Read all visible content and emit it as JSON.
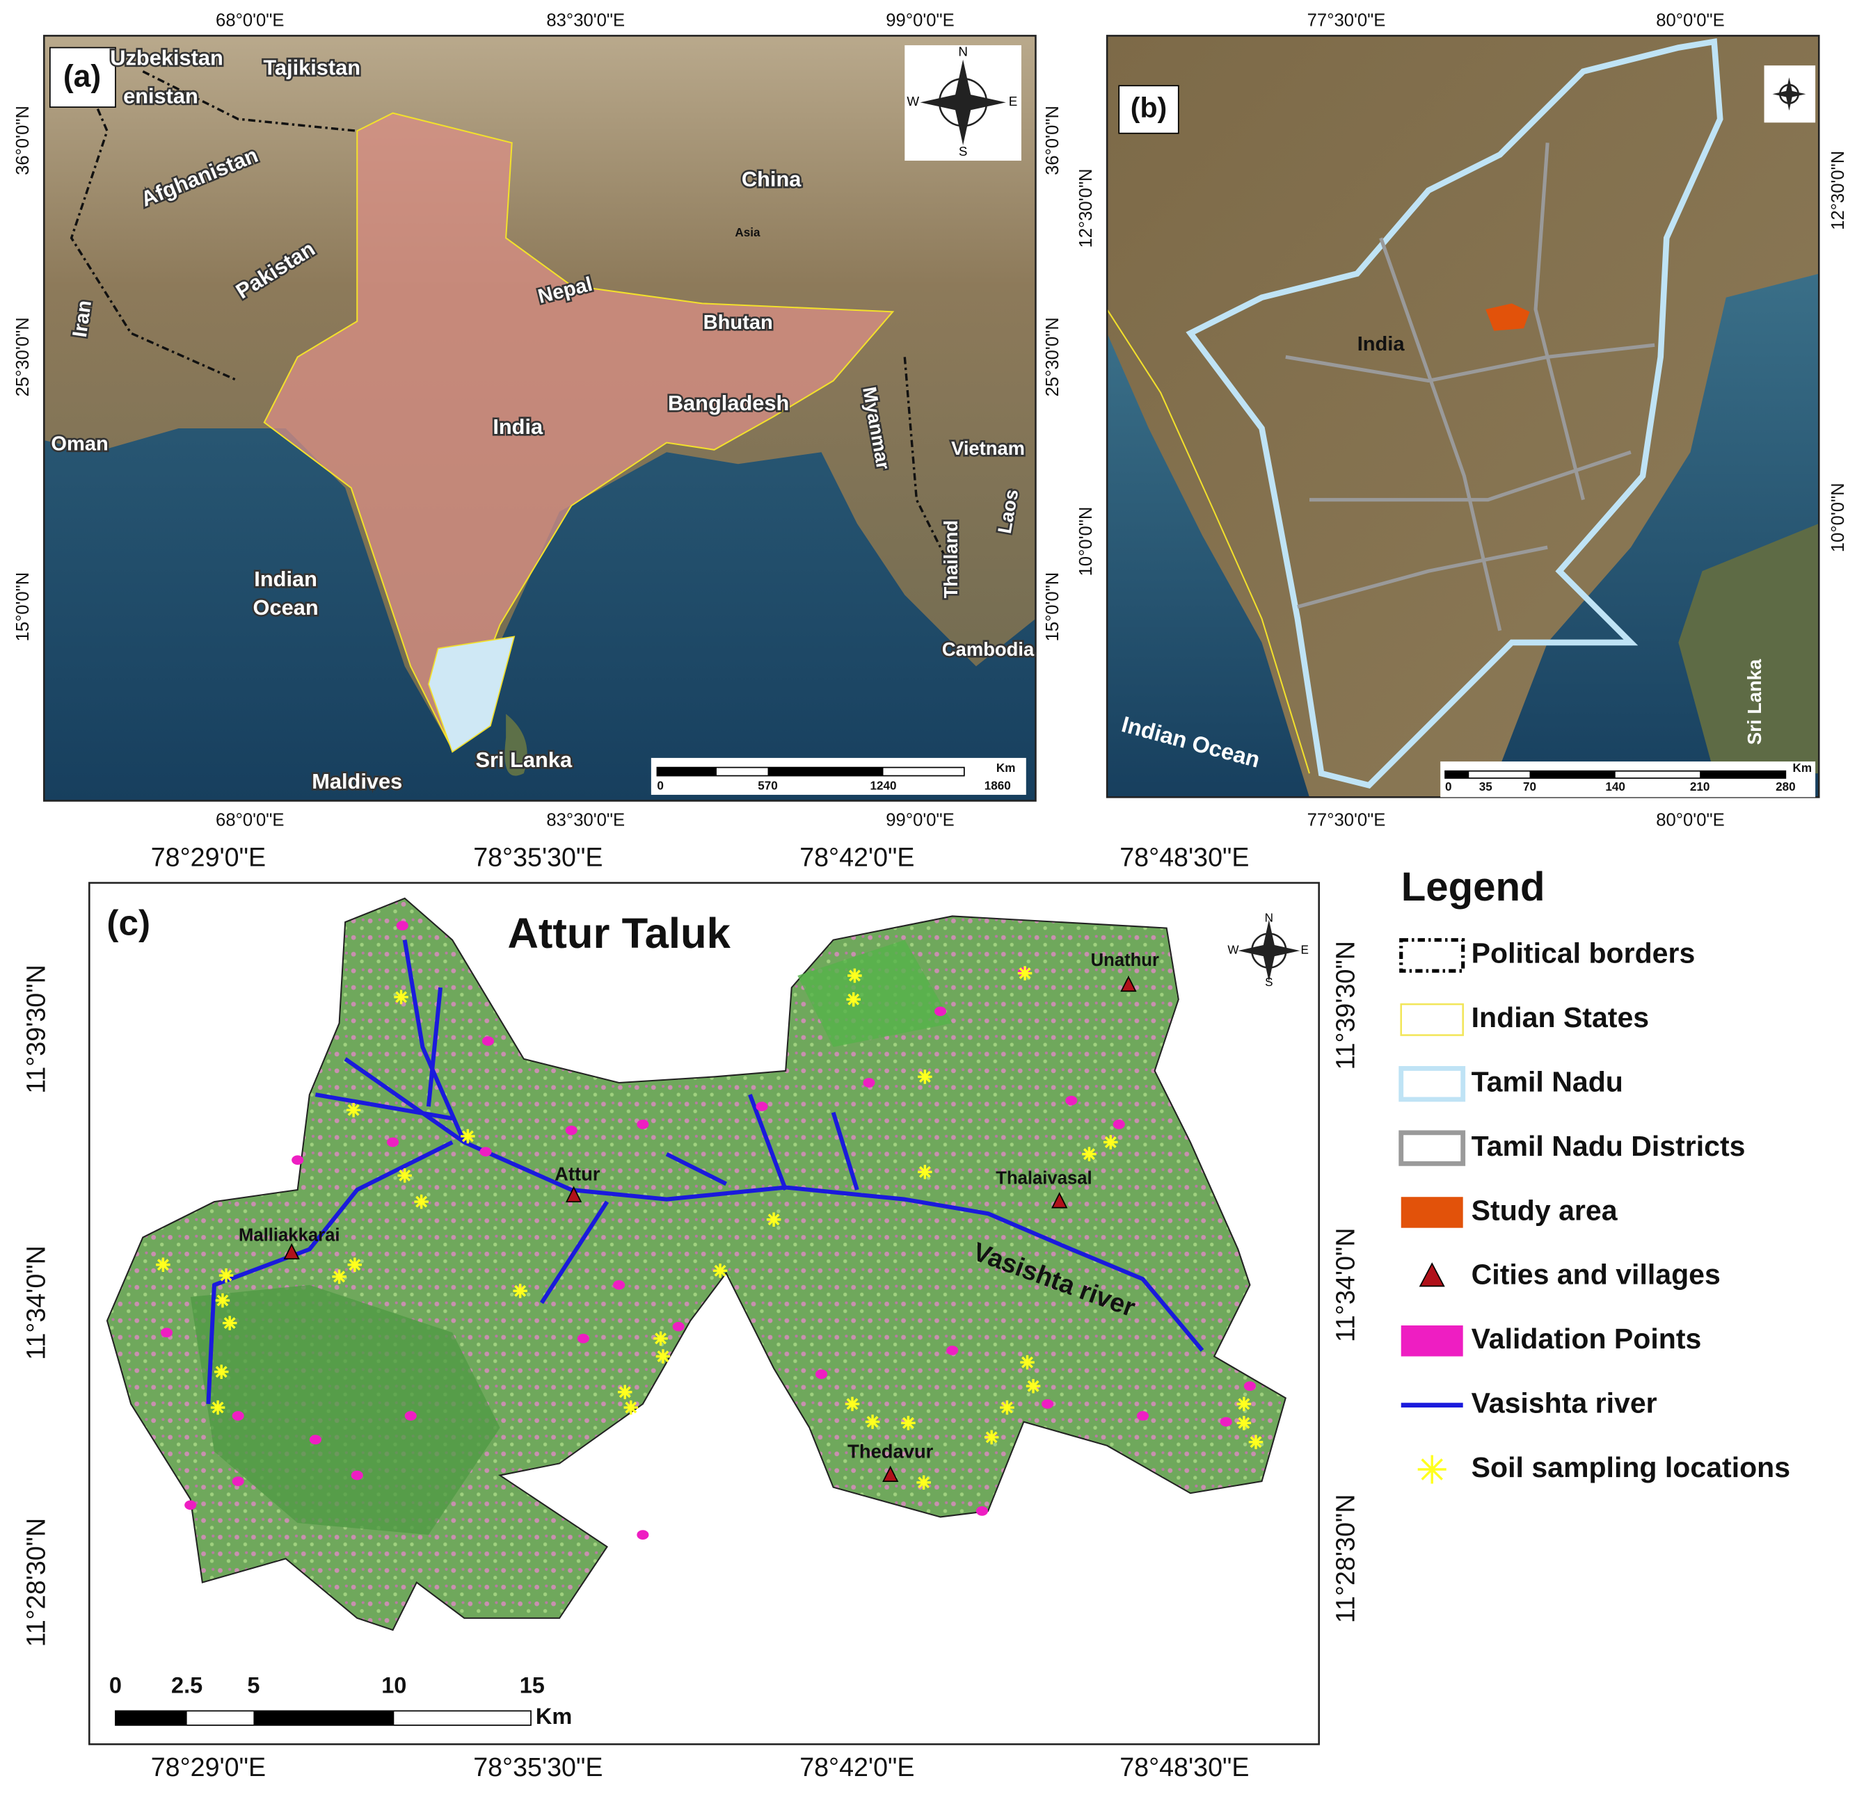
{
  "panels": {
    "a": {
      "label": "(a)",
      "places": [
        "Uzbekistan",
        "Tajikistan",
        "enistan",
        "Afghanistan",
        "Pakistan",
        "Iran",
        "China",
        "Asia",
        "Nepal",
        "Bhutan",
        "India",
        "Bangladesh",
        "Myanmar",
        "Vietnam",
        "Laos",
        "Thailand",
        "Cambodia",
        "Oman",
        "Indian",
        "Ocean",
        "Sri Lanka",
        "Maldives"
      ],
      "xticks": [
        "68°0'0\"E",
        "83°30'0\"E",
        "99°0'0\"E"
      ],
      "yticks": [
        "36°0'0\"N",
        "25°30'0\"N",
        "15°0'0\"N"
      ],
      "compass": [
        "N",
        "S",
        "E",
        "W"
      ],
      "scale": {
        "labels": [
          "0",
          "570",
          "1240",
          "1860"
        ],
        "unit": "Km"
      }
    },
    "b": {
      "label": "(b)",
      "places": [
        "India",
        "Indian Ocean",
        "Sri Lanka"
      ],
      "xticks": [
        "77°30'0\"E",
        "80°0'0\"E"
      ],
      "yticks": [
        "12°30'0\"N",
        "10°0'0\"N"
      ],
      "scale": {
        "labels": [
          "0",
          "35",
          "70",
          "140",
          "210",
          "280"
        ],
        "unit": "Km"
      }
    },
    "c": {
      "label": "(c)",
      "title": "Attur Taluk",
      "places": [
        "Unathur",
        "Attur",
        "Thalaivasal",
        "Malliakkarai",
        "Thedavur",
        "Vasishta river"
      ],
      "xticks": [
        "78°29'0\"E",
        "78°35'30\"E",
        "78°42'0\"E",
        "78°48'30\"E"
      ],
      "yticks": [
        "11°39'30\"N",
        "11°34'0\"N",
        "11°28'30\"N"
      ],
      "compass": [
        "N",
        "S",
        "E",
        "W"
      ],
      "scale": {
        "labels": [
          "0",
          "2.5",
          "5",
          "10",
          "15"
        ],
        "unit": "Km"
      }
    }
  },
  "legend": {
    "title": "Legend",
    "items": [
      "Political borders",
      "Indian States",
      "Tamil Nadu",
      "Tamil Nadu Districts",
      "Study area",
      "Cities and villages",
      "Validation Points",
      "Vasishta river",
      "Soil sampling locations"
    ]
  }
}
